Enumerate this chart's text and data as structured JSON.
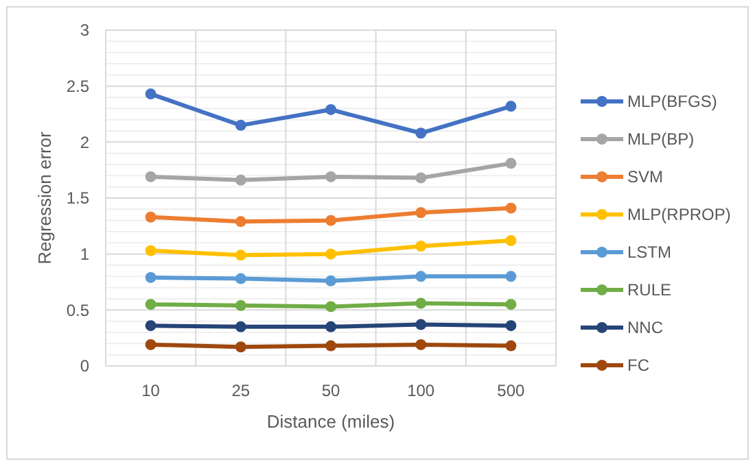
{
  "chart_data": {
    "type": "line",
    "xlabel": "Distance (miles)",
    "ylabel": "Regression error",
    "categories": [
      "10",
      "25",
      "50",
      "100",
      "500"
    ],
    "series": [
      {
        "name": "MLP(BFGS)",
        "color": "#4472c4",
        "values": [
          2.43,
          2.15,
          2.29,
          2.08,
          2.32
        ]
      },
      {
        "name": "MLP(BP)",
        "color": "#a5a5a5",
        "values": [
          1.69,
          1.66,
          1.69,
          1.68,
          1.81
        ]
      },
      {
        "name": "SVM",
        "color": "#ed7d31",
        "values": [
          1.33,
          1.29,
          1.3,
          1.37,
          1.41
        ]
      },
      {
        "name": "MLP(RPROP)",
        "color": "#ffc000",
        "values": [
          1.03,
          0.99,
          1.0,
          1.07,
          1.12
        ]
      },
      {
        "name": "LSTM",
        "color": "#5b9bd5",
        "values": [
          0.79,
          0.78,
          0.76,
          0.8,
          0.8
        ]
      },
      {
        "name": "RULE",
        "color": "#70ad47",
        "values": [
          0.55,
          0.54,
          0.53,
          0.56,
          0.55
        ]
      },
      {
        "name": "NNC",
        "color": "#264478",
        "values": [
          0.36,
          0.35,
          0.35,
          0.37,
          0.36
        ]
      },
      {
        "name": "FC",
        "color": "#9e480e",
        "values": [
          0.19,
          0.17,
          0.18,
          0.19,
          0.18
        ]
      }
    ],
    "ylim": [
      0,
      3
    ],
    "yticks": [
      0,
      {
        "value": 0.1,
        "label": null
      },
      {
        "value": 0.2,
        "label": null
      },
      {
        "value": 0.3,
        "label": null
      },
      {
        "value": 0.4,
        "label": null
      },
      0.5,
      {
        "value": 0.6,
        "label": null
      },
      {
        "value": 0.7,
        "label": null
      },
      {
        "value": 0.8,
        "label": null
      },
      {
        "value": 0.9,
        "label": null
      },
      1,
      {
        "value": 1.1,
        "label": null
      },
      {
        "value": 1.2,
        "label": null
      },
      {
        "value": 1.3,
        "label": null
      },
      {
        "value": 1.4,
        "label": null
      },
      1.5,
      {
        "value": 1.6,
        "label": null
      },
      {
        "value": 1.7,
        "label": null
      },
      {
        "value": 1.8,
        "label": null
      },
      {
        "value": 1.9,
        "label": null
      },
      2,
      {
        "value": 2.1,
        "label": null
      },
      {
        "value": 2.2,
        "label": null
      },
      {
        "value": 2.3,
        "label": null
      },
      {
        "value": 2.4,
        "label": null
      },
      2.5,
      {
        "value": 2.6,
        "label": null
      },
      {
        "value": 2.7,
        "label": null
      },
      {
        "value": 2.8,
        "label": null
      },
      {
        "value": 2.9,
        "label": null
      },
      3
    ],
    "grid": true,
    "legend": "right",
    "marker": "circle",
    "line_style": "solid"
  }
}
